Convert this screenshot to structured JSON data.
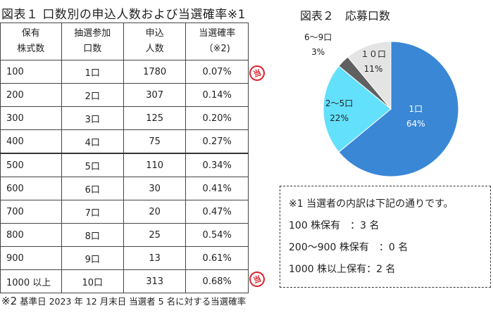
{
  "table1": {
    "title": "図表１ 口数別の申込人数および当選確率※1",
    "headers": [
      [
        "保有",
        "株式数"
      ],
      [
        "抽選参加",
        "口数"
      ],
      [
        "申込",
        "人数"
      ],
      [
        "当選確率",
        "（※2)"
      ]
    ],
    "rows": [
      {
        "shares": "100",
        "units": "1口",
        "applicants": "1780",
        "rate": "0.07%",
        "winner": true
      },
      {
        "shares": "200",
        "units": "2口",
        "applicants": "307",
        "rate": "0.14%",
        "winner": false
      },
      {
        "shares": "300",
        "units": "3口",
        "applicants": "125",
        "rate": "0.20%",
        "winner": false
      },
      {
        "shares": "400",
        "units": "4口",
        "applicants": "75",
        "rate": "0.27%",
        "winner": false
      },
      {
        "shares": "500",
        "units": "5口",
        "applicants": "110",
        "rate": "0.34%",
        "winner": false
      },
      {
        "shares": "600",
        "units": "6口",
        "applicants": "30",
        "rate": "0.41%",
        "winner": false
      },
      {
        "shares": "700",
        "units": "7口",
        "applicants": "20",
        "rate": "0.47%",
        "winner": false
      },
      {
        "shares": "800",
        "units": "8口",
        "applicants": "25",
        "rate": "0.54%",
        "winner": false
      },
      {
        "shares": "900",
        "units": "9口",
        "applicants": "13",
        "rate": "0.61%",
        "winner": false
      },
      {
        "shares": "1000 以上",
        "units": "10口",
        "applicants": "313",
        "rate": "0.68%",
        "winner": true
      }
    ],
    "winner_stamp": "当",
    "footnote_mark": "※2",
    "footnote": " 基準日 2023 年 12 月末日  当選者 5 名に対する当選確率"
  },
  "chart_data": {
    "type": "pie",
    "title": "図表２　応募口数",
    "categories": [
      "1口",
      "2～5口",
      "6～9口",
      "１０口"
    ],
    "values": [
      64,
      22,
      3,
      11
    ],
    "labels": [
      "64%",
      "22%",
      "3%",
      "11%"
    ],
    "colors": [
      "#3a87d6",
      "#63e0fb",
      "#606060",
      "#e4e4e4"
    ],
    "start_angle_deg": 0,
    "direction": "clockwise"
  },
  "note": {
    "lines": [
      "※1 当選者の内訳は下記の通りです。",
      "100 株保有　：3 名",
      "200～900 株保有　：0 名",
      "1000 株以上保有：2 名"
    ]
  }
}
